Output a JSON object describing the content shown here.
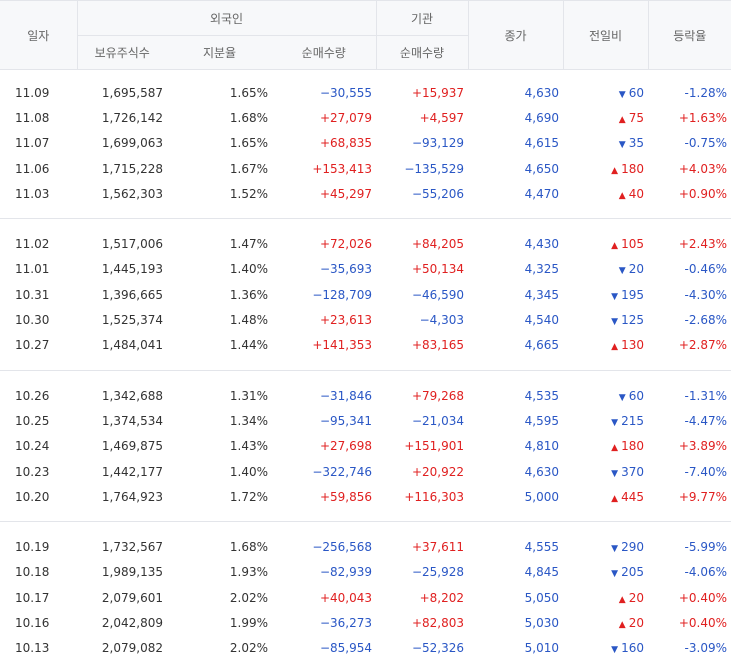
{
  "header": {
    "date": "일자",
    "foreign": "외국인",
    "institution": "기관",
    "holdings": "보유주식수",
    "share": "지분율",
    "foreign_net": "순매수량",
    "inst_net": "순매수량",
    "close": "종가",
    "change": "전일비",
    "rate": "등락율"
  },
  "colors": {
    "up": "#e02020",
    "down": "#2a57c5"
  },
  "groups": [
    [
      {
        "date": "11.09",
        "holdings": "1,695,587",
        "share": "1.65%",
        "foreign_net": "−30,555",
        "inst_net": "+15,937",
        "close": "4,630",
        "dir": "down",
        "change": "60",
        "rate": "-1.28%"
      },
      {
        "date": "11.08",
        "holdings": "1,726,142",
        "share": "1.68%",
        "foreign_net": "+27,079",
        "inst_net": "+4,597",
        "close": "4,690",
        "dir": "up",
        "change": "75",
        "rate": "+1.63%"
      },
      {
        "date": "11.07",
        "holdings": "1,699,063",
        "share": "1.65%",
        "foreign_net": "+68,835",
        "inst_net": "−93,129",
        "close": "4,615",
        "dir": "down",
        "change": "35",
        "rate": "-0.75%"
      },
      {
        "date": "11.06",
        "holdings": "1,715,228",
        "share": "1.67%",
        "foreign_net": "+153,413",
        "inst_net": "−135,529",
        "close": "4,650",
        "dir": "up",
        "change": "180",
        "rate": "+4.03%"
      },
      {
        "date": "11.03",
        "holdings": "1,562,303",
        "share": "1.52%",
        "foreign_net": "+45,297",
        "inst_net": "−55,206",
        "close": "4,470",
        "dir": "up",
        "change": "40",
        "rate": "+0.90%"
      }
    ],
    [
      {
        "date": "11.02",
        "holdings": "1,517,006",
        "share": "1.47%",
        "foreign_net": "+72,026",
        "inst_net": "+84,205",
        "close": "4,430",
        "dir": "up",
        "change": "105",
        "rate": "+2.43%"
      },
      {
        "date": "11.01",
        "holdings": "1,445,193",
        "share": "1.40%",
        "foreign_net": "−35,693",
        "inst_net": "+50,134",
        "close": "4,325",
        "dir": "down",
        "change": "20",
        "rate": "-0.46%"
      },
      {
        "date": "10.31",
        "holdings": "1,396,665",
        "share": "1.36%",
        "foreign_net": "−128,709",
        "inst_net": "−46,590",
        "close": "4,345",
        "dir": "down",
        "change": "195",
        "rate": "-4.30%"
      },
      {
        "date": "10.30",
        "holdings": "1,525,374",
        "share": "1.48%",
        "foreign_net": "+23,613",
        "inst_net": "−4,303",
        "close": "4,540",
        "dir": "down",
        "change": "125",
        "rate": "-2.68%"
      },
      {
        "date": "10.27",
        "holdings": "1,484,041",
        "share": "1.44%",
        "foreign_net": "+141,353",
        "inst_net": "+83,165",
        "close": "4,665",
        "dir": "up",
        "change": "130",
        "rate": "+2.87%"
      }
    ],
    [
      {
        "date": "10.26",
        "holdings": "1,342,688",
        "share": "1.31%",
        "foreign_net": "−31,846",
        "inst_net": "+79,268",
        "close": "4,535",
        "dir": "down",
        "change": "60",
        "rate": "-1.31%"
      },
      {
        "date": "10.25",
        "holdings": "1,374,534",
        "share": "1.34%",
        "foreign_net": "−95,341",
        "inst_net": "−21,034",
        "close": "4,595",
        "dir": "down",
        "change": "215",
        "rate": "-4.47%"
      },
      {
        "date": "10.24",
        "holdings": "1,469,875",
        "share": "1.43%",
        "foreign_net": "+27,698",
        "inst_net": "+151,901",
        "close": "4,810",
        "dir": "up",
        "change": "180",
        "rate": "+3.89%"
      },
      {
        "date": "10.23",
        "holdings": "1,442,177",
        "share": "1.40%",
        "foreign_net": "−322,746",
        "inst_net": "+20,922",
        "close": "4,630",
        "dir": "down",
        "change": "370",
        "rate": "-7.40%"
      },
      {
        "date": "10.20",
        "holdings": "1,764,923",
        "share": "1.72%",
        "foreign_net": "+59,856",
        "inst_net": "+116,303",
        "close": "5,000",
        "dir": "up",
        "change": "445",
        "rate": "+9.77%"
      }
    ],
    [
      {
        "date": "10.19",
        "holdings": "1,732,567",
        "share": "1.68%",
        "foreign_net": "−256,568",
        "inst_net": "+37,611",
        "close": "4,555",
        "dir": "down",
        "change": "290",
        "rate": "-5.99%"
      },
      {
        "date": "10.18",
        "holdings": "1,989,135",
        "share": "1.93%",
        "foreign_net": "−82,939",
        "inst_net": "−25,928",
        "close": "4,845",
        "dir": "down",
        "change": "205",
        "rate": "-4.06%"
      },
      {
        "date": "10.17",
        "holdings": "2,079,601",
        "share": "2.02%",
        "foreign_net": "+40,043",
        "inst_net": "+8,202",
        "close": "5,050",
        "dir": "up",
        "change": "20",
        "rate": "+0.40%"
      },
      {
        "date": "10.16",
        "holdings": "2,042,809",
        "share": "1.99%",
        "foreign_net": "−36,273",
        "inst_net": "+82,803",
        "close": "5,030",
        "dir": "up",
        "change": "20",
        "rate": "+0.40%"
      },
      {
        "date": "10.13",
        "holdings": "2,079,082",
        "share": "2.02%",
        "foreign_net": "−85,954",
        "inst_net": "−52,326",
        "close": "5,010",
        "dir": "down",
        "change": "160",
        "rate": "-3.09%"
      }
    ]
  ]
}
